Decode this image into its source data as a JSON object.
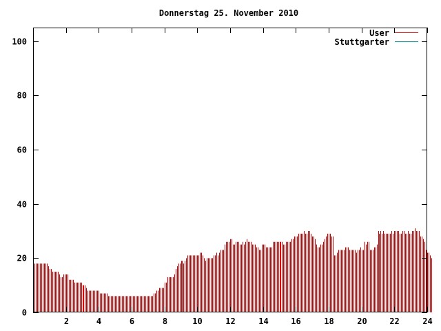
{
  "chart_data": {
    "type": "bar",
    "title": "Donnerstag 25. November 2010",
    "xlabel": "",
    "ylabel": "",
    "xlim": [
      0,
      24
    ],
    "ylim": [
      0,
      105
    ],
    "x_ticks": [
      2,
      4,
      6,
      8,
      10,
      12,
      14,
      16,
      18,
      20,
      22,
      24
    ],
    "y_ticks": [
      0,
      20,
      40,
      60,
      80,
      100
    ],
    "grid": false,
    "legend_position": "top-right",
    "series": [
      {
        "name": "User",
        "color": "#cc0000",
        "interval_minutes": 5,
        "values": [
          18,
          18,
          18,
          18,
          18,
          18,
          18,
          18,
          18,
          18,
          18,
          17,
          16,
          16,
          15,
          15,
          15,
          15,
          15,
          14,
          13,
          13,
          14,
          14,
          14,
          14,
          12,
          12,
          12,
          12,
          11,
          11,
          11,
          11,
          11,
          11,
          10,
          10,
          10,
          9,
          8,
          8,
          8,
          8,
          8,
          8,
          8,
          8,
          8,
          7,
          7,
          7,
          7,
          7,
          7,
          6,
          6,
          6,
          6,
          6,
          6,
          6,
          6,
          6,
          6,
          6,
          6,
          6,
          6,
          6,
          6,
          6,
          6,
          6,
          6,
          6,
          6,
          6,
          6,
          6,
          6,
          6,
          6,
          6,
          6,
          6,
          6,
          6,
          7,
          7,
          8,
          8,
          9,
          9,
          9,
          9,
          11,
          11,
          13,
          13,
          13,
          13,
          13,
          14,
          16,
          17,
          18,
          18,
          19,
          19,
          18,
          19,
          20,
          21,
          21,
          21,
          21,
          21,
          21,
          21,
          21,
          21,
          22,
          22,
          21,
          20,
          19,
          20,
          20,
          20,
          20,
          20,
          21,
          21,
          22,
          21,
          22,
          23,
          23,
          23,
          25,
          26,
          26,
          26,
          27,
          27,
          25,
          25,
          26,
          26,
          26,
          25,
          25,
          26,
          25,
          26,
          27,
          26,
          26,
          26,
          25,
          25,
          25,
          24,
          24,
          23,
          23,
          25,
          25,
          25,
          24,
          24,
          24,
          24,
          24,
          26,
          26,
          26,
          26,
          26,
          26,
          26,
          26,
          25,
          25,
          26,
          26,
          26,
          26,
          27,
          27,
          28,
          28,
          28,
          29,
          29,
          29,
          29,
          30,
          29,
          29,
          30,
          30,
          29,
          28,
          28,
          27,
          25,
          24,
          24,
          25,
          25,
          26,
          27,
          28,
          29,
          29,
          29,
          28,
          28,
          21,
          21,
          22,
          23,
          23,
          23,
          23,
          23,
          24,
          24,
          24,
          23,
          23,
          23,
          23,
          23,
          22,
          23,
          23,
          24,
          23,
          23,
          26,
          25,
          26,
          26,
          23,
          23,
          23,
          24,
          24,
          25,
          30,
          29,
          30,
          29,
          30,
          29,
          29,
          29,
          29,
          29,
          30,
          29,
          30,
          30,
          30,
          30,
          29,
          29,
          30,
          30,
          29,
          29,
          30,
          29,
          29,
          30,
          30,
          31,
          30,
          30,
          30,
          28,
          28,
          27,
          26,
          23,
          22,
          22,
          21,
          20
        ]
      },
      {
        "name": "Stuttgarter",
        "color": "#008b8b",
        "values": []
      }
    ]
  }
}
